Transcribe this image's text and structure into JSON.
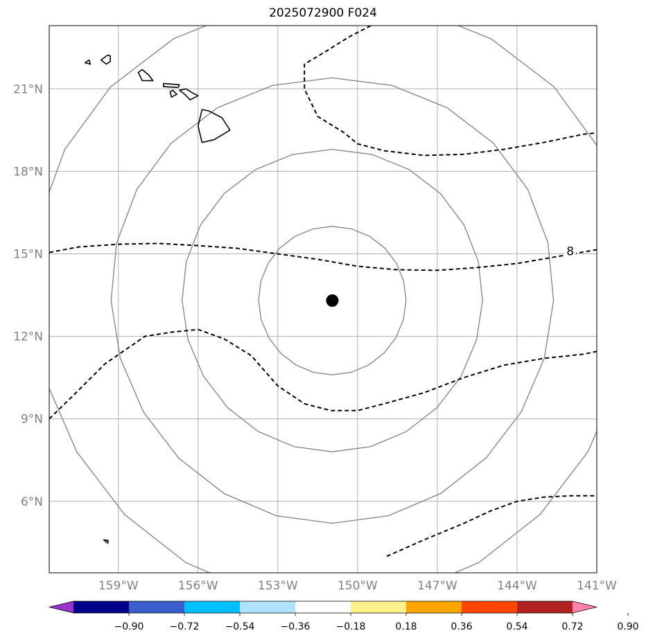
{
  "title": "2025072900 F024",
  "map": {
    "lon_range": [
      -161.6,
      -141.0
    ],
    "lat_range": [
      3.4,
      23.3
    ],
    "lon_ticks": [
      {
        "value": -159,
        "label": "159°W"
      },
      {
        "value": -156,
        "label": "156°W"
      },
      {
        "value": -153,
        "label": "153°W"
      },
      {
        "value": -150,
        "label": "150°W"
      },
      {
        "value": -147,
        "label": "147°W"
      },
      {
        "value": -144,
        "label": "144°W"
      },
      {
        "value": -141,
        "label": "141°W"
      }
    ],
    "lat_ticks": [
      {
        "value": 6,
        "label": "6°N"
      },
      {
        "value": 9,
        "label": "9°N"
      },
      {
        "value": 12,
        "label": "12°N"
      },
      {
        "value": 15,
        "label": "15°N"
      },
      {
        "value": 18,
        "label": "18°N"
      },
      {
        "value": 21,
        "label": "21°N"
      }
    ],
    "center": {
      "lon": -150.95,
      "lat": 13.3
    },
    "range_rings_deg": [
      2.7,
      5.5,
      8.1,
      11.0
    ],
    "dashed_contours": [
      {
        "label": "8",
        "label_lon": -142.0,
        "label_lat": 15.1,
        "points": [
          [
            -161.6,
            15.05
          ],
          [
            -160.5,
            15.25
          ],
          [
            -159,
            15.35
          ],
          [
            -157.5,
            15.38
          ],
          [
            -156,
            15.3
          ],
          [
            -154.5,
            15.2
          ],
          [
            -153,
            15.0
          ],
          [
            -151.5,
            14.8
          ],
          [
            -150,
            14.55
          ],
          [
            -148.5,
            14.42
          ],
          [
            -147,
            14.4
          ],
          [
            -145.5,
            14.5
          ],
          [
            -144,
            14.65
          ],
          [
            -142.5,
            14.9
          ],
          [
            -141,
            15.15
          ]
        ]
      },
      {
        "label": "",
        "label_lon": null,
        "label_lat": null,
        "points": [
          [
            -149.5,
            23.3
          ],
          [
            -150.3,
            22.9
          ],
          [
            -151.3,
            22.3
          ],
          [
            -152.0,
            21.9
          ],
          [
            -152.0,
            21.0
          ],
          [
            -151.5,
            20.0
          ],
          [
            -150.5,
            19.4
          ],
          [
            -150,
            19.0
          ],
          [
            -149,
            18.75
          ],
          [
            -147.5,
            18.58
          ],
          [
            -146,
            18.62
          ],
          [
            -144.5,
            18.8
          ],
          [
            -143,
            19.05
          ],
          [
            -141.5,
            19.35
          ],
          [
            -141,
            19.4
          ]
        ]
      },
      {
        "label": "",
        "label_lon": null,
        "label_lat": null,
        "points": [
          [
            -161.6,
            9.0
          ],
          [
            -160.8,
            9.75
          ],
          [
            -159.5,
            11.0
          ],
          [
            -158.0,
            12.0
          ],
          [
            -157.0,
            12.15
          ],
          [
            -156.0,
            12.25
          ],
          [
            -155.0,
            11.9
          ],
          [
            -154.0,
            11.3
          ],
          [
            -153.0,
            10.2
          ],
          [
            -152.0,
            9.55
          ],
          [
            -151.0,
            9.3
          ],
          [
            -150.0,
            9.3
          ],
          [
            -149.0,
            9.55
          ],
          [
            -147.5,
            9.95
          ],
          [
            -146.0,
            10.5
          ],
          [
            -144.5,
            10.95
          ],
          [
            -143.0,
            11.2
          ],
          [
            -141.5,
            11.35
          ],
          [
            -141,
            11.45
          ]
        ]
      },
      {
        "label": "",
        "label_lon": null,
        "label_lat": null,
        "points": [
          [
            -148.9,
            4.0
          ],
          [
            -147.5,
            4.6
          ],
          [
            -146,
            5.2
          ],
          [
            -145,
            5.65
          ],
          [
            -144,
            6.0
          ],
          [
            -143,
            6.15
          ],
          [
            -142,
            6.2
          ],
          [
            -141,
            6.2
          ]
        ]
      }
    ],
    "islands": [
      [
        [
          -159.65,
          22.05
        ],
        [
          -159.4,
          22.23
        ],
        [
          -159.3,
          22.2
        ],
        [
          -159.3,
          22.0
        ],
        [
          -159.45,
          21.9
        ],
        [
          -159.65,
          22.05
        ]
      ],
      [
        [
          -160.25,
          21.95
        ],
        [
          -160.1,
          22.05
        ],
        [
          -160.05,
          21.9
        ],
        [
          -160.25,
          21.95
        ]
      ],
      [
        [
          -158.25,
          21.6
        ],
        [
          -158.1,
          21.7
        ],
        [
          -157.85,
          21.5
        ],
        [
          -157.7,
          21.3
        ],
        [
          -158.1,
          21.3
        ],
        [
          -158.25,
          21.6
        ]
      ],
      [
        [
          -157.3,
          21.2
        ],
        [
          -156.7,
          21.15
        ],
        [
          -156.75,
          21.05
        ],
        [
          -157.3,
          21.08
        ],
        [
          -157.3,
          21.2
        ]
      ],
      [
        [
          -157.05,
          20.9
        ],
        [
          -156.95,
          20.95
        ],
        [
          -156.8,
          20.8
        ],
        [
          -157.0,
          20.7
        ],
        [
          -157.05,
          20.9
        ]
      ],
      [
        [
          -156.7,
          20.95
        ],
        [
          -156.45,
          21.0
        ],
        [
          -156.2,
          20.85
        ],
        [
          -156.0,
          20.75
        ],
        [
          -156.3,
          20.6
        ],
        [
          -156.5,
          20.8
        ],
        [
          -156.7,
          20.95
        ]
      ],
      [
        [
          -155.85,
          20.25
        ],
        [
          -155.6,
          20.2
        ],
        [
          -155.1,
          19.95
        ],
        [
          -154.8,
          19.5
        ],
        [
          -155.4,
          19.15
        ],
        [
          -155.85,
          19.05
        ],
        [
          -156.0,
          19.65
        ],
        [
          -155.85,
          20.25
        ]
      ],
      [
        [
          -159.55,
          4.6
        ],
        [
          -159.38,
          4.58
        ],
        [
          -159.4,
          4.48
        ],
        [
          -159.55,
          4.6
        ]
      ]
    ]
  },
  "colorbar": {
    "colors": [
      "#9932cc",
      "#00008b",
      "#3a5fcd",
      "#00bfff",
      "#b0e2ff",
      "#ffffff",
      "#fff08a",
      "#ffa500",
      "#ff4500",
      "#b22222",
      "#ff82ab"
    ],
    "tick_labels": [
      "−0.90",
      "−0.72",
      "−0.54",
      "−0.36",
      "−0.18",
      "0.18",
      "0.36",
      "0.54",
      "0.72",
      "0.90"
    ]
  }
}
